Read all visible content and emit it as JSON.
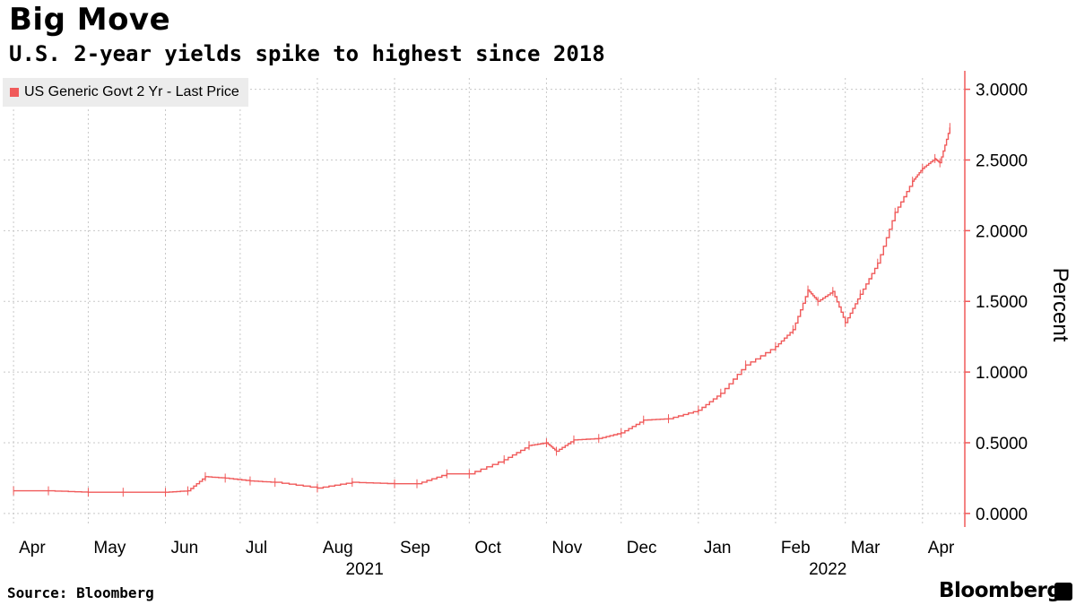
{
  "chart_data": {
    "type": "line",
    "title": "Big Move",
    "subtitle": "U.S. 2-year yields spike to highest since 2018",
    "legend": [
      "US Generic Govt 2 Yr - Last Price"
    ],
    "series": [
      {
        "name": "US Generic Govt 2 Yr - Last Price",
        "x_dates": [
          "2021-04-01",
          "2021-04-15",
          "2021-05-01",
          "2021-05-15",
          "2021-06-01",
          "2021-06-10",
          "2021-06-17",
          "2021-06-25",
          "2021-07-05",
          "2021-07-15",
          "2021-08-01",
          "2021-08-15",
          "2021-09-01",
          "2021-09-10",
          "2021-09-22",
          "2021-10-01",
          "2021-10-15",
          "2021-10-25",
          "2021-11-01",
          "2021-11-05",
          "2021-11-12",
          "2021-11-22",
          "2021-12-01",
          "2021-12-10",
          "2021-12-20",
          "2022-01-01",
          "2022-01-10",
          "2022-01-20",
          "2022-02-01",
          "2022-02-08",
          "2022-02-14",
          "2022-02-18",
          "2022-02-24",
          "2022-03-01",
          "2022-03-07",
          "2022-03-14",
          "2022-03-21",
          "2022-03-28",
          "2022-04-01",
          "2022-04-06",
          "2022-04-08",
          "2022-04-12"
        ],
        "values": [
          0.16,
          0.16,
          0.15,
          0.15,
          0.15,
          0.16,
          0.26,
          0.25,
          0.23,
          0.22,
          0.18,
          0.22,
          0.21,
          0.21,
          0.28,
          0.28,
          0.38,
          0.48,
          0.5,
          0.44,
          0.52,
          0.53,
          0.57,
          0.66,
          0.67,
          0.73,
          0.85,
          1.05,
          1.18,
          1.3,
          1.58,
          1.5,
          1.57,
          1.35,
          1.55,
          1.77,
          2.13,
          2.35,
          2.44,
          2.51,
          2.48,
          2.73
        ]
      }
    ],
    "x_ticks": [
      {
        "label": "Apr",
        "date": "2021-04-01"
      },
      {
        "label": "May",
        "date": "2021-05-01"
      },
      {
        "label": "Jun",
        "date": "2021-06-01"
      },
      {
        "label": "Jul",
        "date": "2021-07-01"
      },
      {
        "label": "Aug",
        "date": "2021-08-01"
      },
      {
        "label": "Sep",
        "date": "2021-09-01"
      },
      {
        "label": "Oct",
        "date": "2021-10-01"
      },
      {
        "label": "Nov",
        "date": "2021-11-01"
      },
      {
        "label": "Dec",
        "date": "2021-12-01"
      },
      {
        "label": "Jan",
        "date": "2022-01-01"
      },
      {
        "label": "Feb",
        "date": "2022-02-01"
      },
      {
        "label": "Mar",
        "date": "2022-03-01"
      },
      {
        "label": "Apr",
        "date": "2022-04-01"
      }
    ],
    "year_labels": [
      {
        "label": "2021",
        "date": "2021-08-20"
      },
      {
        "label": "2022",
        "date": "2022-02-22"
      }
    ],
    "x_range": [
      "2021-03-28",
      "2022-04-18"
    ],
    "y_ticks": [
      "0.0000",
      "0.5000",
      "1.0000",
      "1.5000",
      "2.0000",
      "2.5000",
      "3.0000"
    ],
    "ylim": [
      -0.02,
      3.08
    ],
    "ylabel": "Percent",
    "y_axis_side": "right",
    "grid": true,
    "legend_position": "top-left",
    "series_color": "#f05a5a",
    "axis_color": "#f05a5a",
    "grid_color": "#c8c8c8"
  },
  "footer": {
    "source": "Source: Bloomberg",
    "brand": "Bloomberg"
  }
}
